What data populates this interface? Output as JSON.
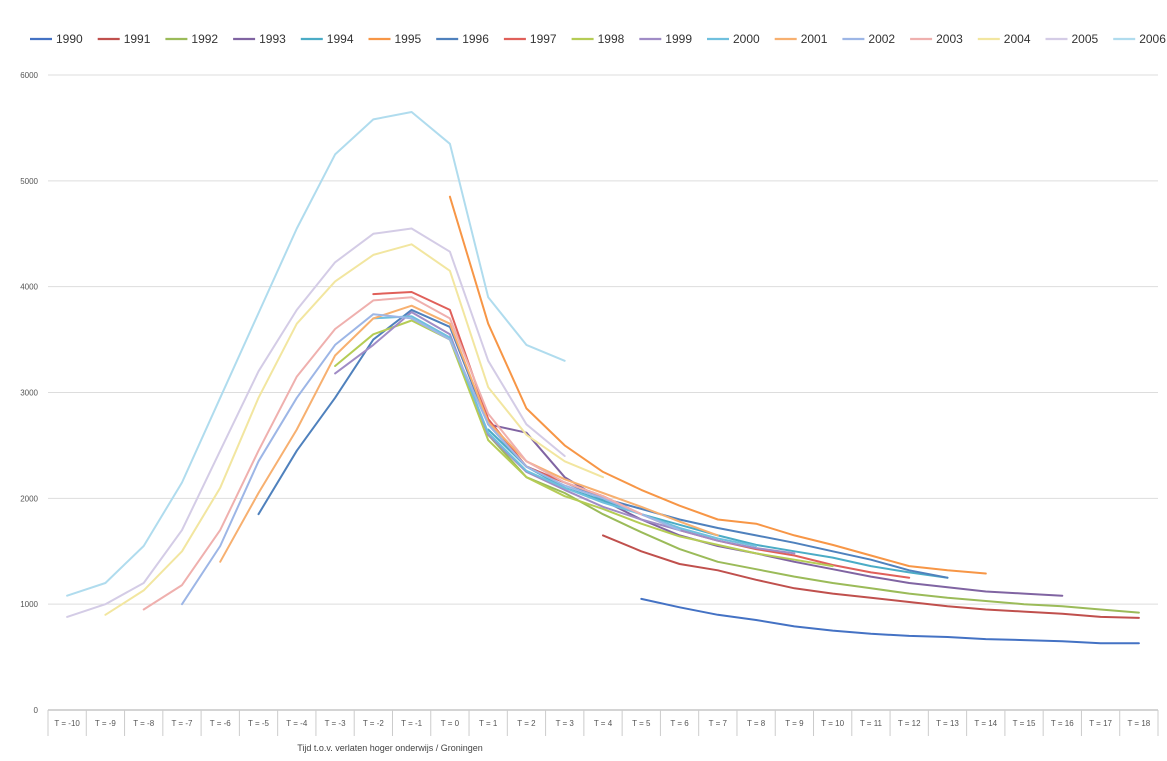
{
  "chart_data": {
    "type": "line",
    "title": "",
    "xlabel": "Tijd t.o.v. verlaten hoger onderwijs / Groningen",
    "ylabel": "",
    "ylim": [
      0,
      6000
    ],
    "yticks": [
      "0",
      "1000",
      "2000",
      "3000",
      "4000",
      "5000",
      "6000"
    ],
    "grid": true,
    "legend": "top",
    "categories": [
      "T = -10",
      "T = -9",
      "T = -8",
      "T = -7",
      "T = -6",
      "T = -5",
      "T = -4",
      "T = -3",
      "T = -2",
      "T = -1",
      "T = 0",
      "T = 1",
      "T = 2",
      "T = 3",
      "T = 4",
      "T = 5",
      "T = 6",
      "T = 7",
      "T = 8",
      "T = 9",
      "T = 10",
      "T = 11",
      "T = 12",
      "T = 13",
      "T = 14",
      "T = 15",
      "T = 16",
      "T = 17",
      "T = 18"
    ],
    "series": [
      {
        "name": "1990",
        "color": "#4472C4",
        "values": [
          null,
          null,
          null,
          null,
          null,
          null,
          null,
          null,
          null,
          null,
          null,
          null,
          null,
          null,
          null,
          1050,
          970,
          900,
          850,
          790,
          750,
          720,
          700,
          690,
          670,
          660,
          650,
          630,
          630
        ]
      },
      {
        "name": "1991",
        "color": "#C0504D",
        "values": [
          null,
          null,
          null,
          null,
          null,
          null,
          null,
          null,
          null,
          null,
          null,
          null,
          null,
          null,
          1650,
          1500,
          1380,
          1320,
          1230,
          1150,
          1100,
          1060,
          1020,
          980,
          950,
          930,
          910,
          880,
          870
        ]
      },
      {
        "name": "1992",
        "color": "#9BBB59",
        "values": [
          null,
          null,
          null,
          null,
          null,
          null,
          null,
          null,
          null,
          null,
          null,
          2600,
          2200,
          2050,
          1850,
          1680,
          1520,
          1400,
          1330,
          1260,
          1200,
          1150,
          1100,
          1060,
          1030,
          1000,
          980,
          950,
          920
        ]
      },
      {
        "name": "1993",
        "color": "#8064A2",
        "values": [
          null,
          null,
          null,
          null,
          null,
          null,
          null,
          null,
          null,
          null,
          null,
          2700,
          2620,
          2200,
          1980,
          1800,
          1650,
          1550,
          1480,
          1400,
          1330,
          1260,
          1200,
          1160,
          1120,
          1100,
          1080,
          null,
          null
        ]
      },
      {
        "name": "1994",
        "color": "#4BACC6",
        "values": [
          null,
          null,
          null,
          null,
          null,
          null,
          null,
          null,
          null,
          null,
          null,
          2650,
          2300,
          2100,
          1980,
          1850,
          1750,
          1650,
          1560,
          1500,
          1440,
          1360,
          1300,
          1250,
          null,
          null,
          null,
          null,
          null
        ]
      },
      {
        "name": "1995",
        "color": "#F79646",
        "values": [
          null,
          null,
          null,
          null,
          null,
          null,
          null,
          null,
          null,
          null,
          4850,
          3650,
          2850,
          2500,
          2250,
          2080,
          1930,
          1800,
          1760,
          1650,
          1560,
          1460,
          1360,
          1320,
          1290,
          null,
          null,
          null,
          null
        ]
      },
      {
        "name": "1996",
        "color": "#4F81BD",
        "values": [
          null,
          null,
          null,
          null,
          null,
          1850,
          2450,
          2950,
          3500,
          3780,
          3620,
          2700,
          2300,
          2150,
          2000,
          1900,
          1800,
          1720,
          1650,
          1580,
          1500,
          1420,
          1320,
          1250,
          null,
          null,
          null,
          null,
          null
        ]
      },
      {
        "name": "1997",
        "color": "#E0605A",
        "values": [
          null,
          null,
          null,
          null,
          null,
          null,
          null,
          null,
          3930,
          3950,
          3780,
          2750,
          2300,
          2150,
          2020,
          1850,
          1700,
          1600,
          1520,
          1460,
          1370,
          1300,
          1250,
          null,
          null,
          null,
          null,
          null,
          null
        ]
      },
      {
        "name": "1998",
        "color": "#B5CC55",
        "values": [
          null,
          null,
          null,
          null,
          null,
          null,
          null,
          3250,
          3550,
          3680,
          3500,
          2550,
          2200,
          2020,
          1900,
          1760,
          1640,
          1560,
          1480,
          1420,
          1360,
          null,
          null,
          null,
          null,
          null,
          null,
          null,
          null
        ]
      },
      {
        "name": "1999",
        "color": "#A08CC6",
        "values": [
          null,
          null,
          null,
          null,
          null,
          null,
          null,
          3180,
          3450,
          3760,
          3550,
          2600,
          2250,
          2080,
          1920,
          1800,
          1700,
          1600,
          1530,
          1480,
          null,
          null,
          null,
          null,
          null,
          null,
          null,
          null,
          null
        ]
      },
      {
        "name": "2000",
        "color": "#70C0DE",
        "values": [
          null,
          null,
          null,
          null,
          null,
          null,
          null,
          null,
          3700,
          3720,
          3520,
          2620,
          2260,
          2100,
          1960,
          1850,
          1720,
          1620,
          1550,
          null,
          null,
          null,
          null,
          null,
          null,
          null,
          null,
          null,
          null
        ]
      },
      {
        "name": "2001",
        "color": "#F7B070",
        "values": [
          null,
          null,
          null,
          null,
          1400,
          2050,
          2650,
          3350,
          3700,
          3820,
          3650,
          2720,
          2350,
          2180,
          2050,
          1920,
          1780,
          1650,
          null,
          null,
          null,
          null,
          null,
          null,
          null,
          null,
          null,
          null,
          null
        ]
      },
      {
        "name": "2002",
        "color": "#9DB6E6",
        "values": [
          null,
          null,
          null,
          1000,
          1550,
          2350,
          2950,
          3450,
          3740,
          3700,
          3500,
          2700,
          2300,
          2120,
          2000,
          1850,
          1700,
          null,
          null,
          null,
          null,
          null,
          null,
          null,
          null,
          null,
          null,
          null,
          null
        ]
      },
      {
        "name": "2003",
        "color": "#EFB0AE",
        "values": [
          null,
          null,
          950,
          1180,
          1700,
          2450,
          3150,
          3600,
          3870,
          3900,
          3700,
          2800,
          2350,
          2150,
          2020,
          1850,
          null,
          null,
          null,
          null,
          null,
          null,
          null,
          null,
          null,
          null,
          null,
          null,
          null
        ]
      },
      {
        "name": "2004",
        "color": "#F2E6A0",
        "values": [
          null,
          900,
          1130,
          1500,
          2100,
          2950,
          3650,
          4050,
          4300,
          4400,
          4150,
          3050,
          2600,
          2350,
          2200,
          null,
          null,
          null,
          null,
          null,
          null,
          null,
          null,
          null,
          null,
          null,
          null,
          null,
          null
        ]
      },
      {
        "name": "2005",
        "color": "#D4CCE6",
        "values": [
          880,
          1000,
          1200,
          1700,
          2450,
          3200,
          3780,
          4230,
          4500,
          4550,
          4330,
          3300,
          2700,
          2400,
          null,
          null,
          null,
          null,
          null,
          null,
          null,
          null,
          null,
          null,
          null,
          null,
          null,
          null,
          null
        ]
      },
      {
        "name": "2006",
        "color": "#B0DCEE",
        "values": [
          1080,
          1200,
          1550,
          2150,
          2950,
          3750,
          4550,
          5250,
          5580,
          5650,
          5350,
          3900,
          3450,
          3300,
          null,
          null,
          null,
          null,
          null,
          null,
          null,
          null,
          null,
          null,
          null,
          null,
          null,
          null,
          null
        ]
      }
    ]
  }
}
